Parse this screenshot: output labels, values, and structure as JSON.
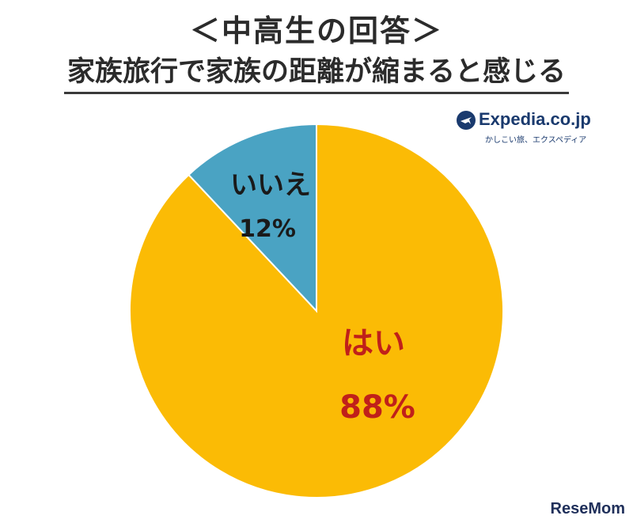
{
  "chart_data": {
    "type": "pie",
    "title": "＜中高生の回答＞",
    "subtitle": "家族旅行で家族の距離が縮まると感じる",
    "slices": [
      {
        "label": "はい",
        "value": 88,
        "value_label": "88%",
        "color": "#fbbb05",
        "label_color": "#c0201a"
      },
      {
        "label": "いいえ",
        "value": 12,
        "value_label": "12%",
        "color": "#4aa3c3",
        "label_color": "#1a1a1a"
      }
    ]
  },
  "brand": {
    "name": "Expedia.co.jp",
    "tagline": "かしこい旅、エクスペディア"
  },
  "watermark": "ReseMom"
}
